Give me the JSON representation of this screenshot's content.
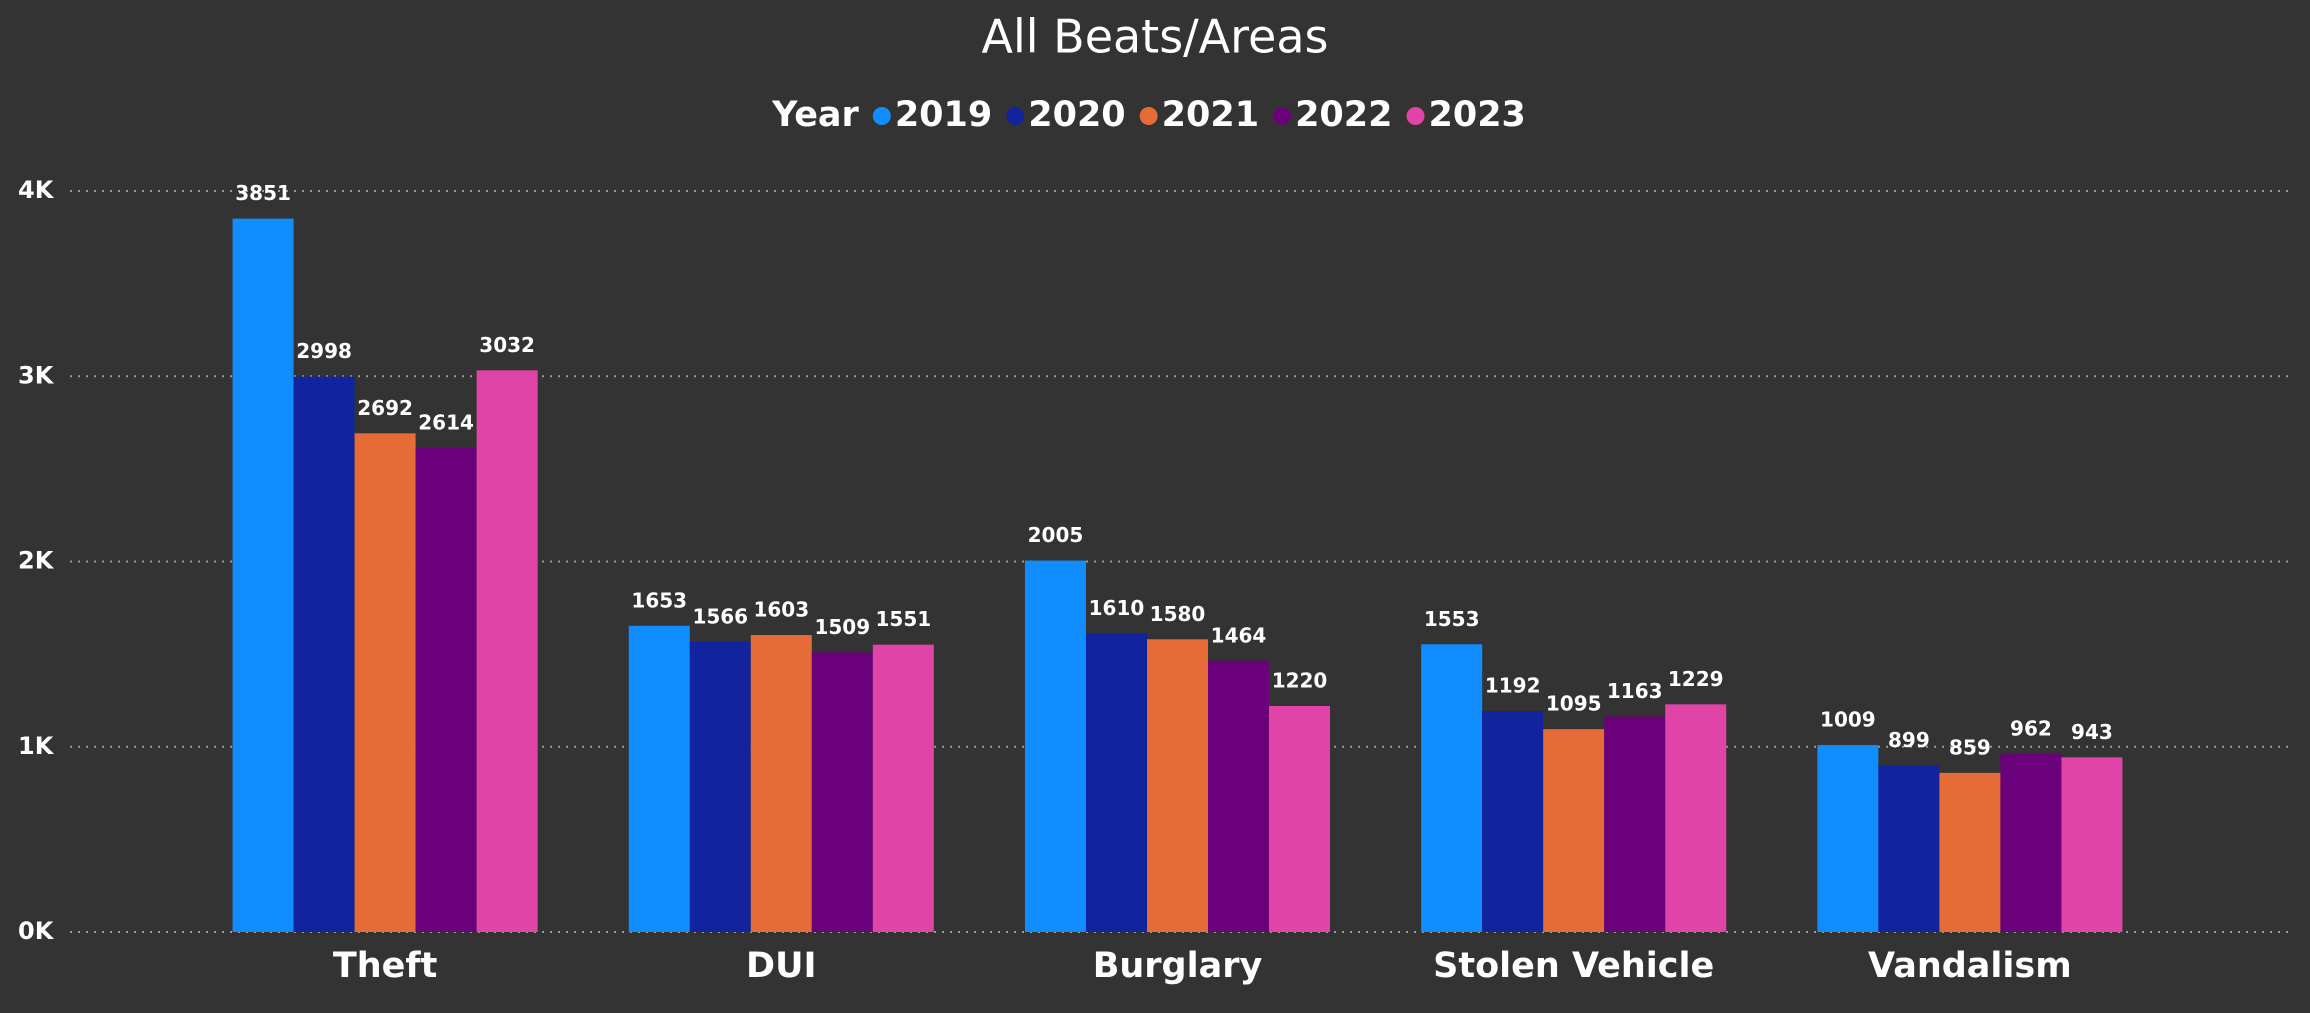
{
  "chart_data": {
    "type": "bar",
    "title": "All Beats/Areas",
    "legend_title": "Year",
    "categories": [
      "Theft",
      "DUI",
      "Burglary",
      "Stolen Vehicle",
      "Vandalism"
    ],
    "series": [
      {
        "name": "2019",
        "color": "#118dff",
        "values": [
          3851,
          1653,
          2005,
          1553,
          1009
        ]
      },
      {
        "name": "2020",
        "color": "#12239e",
        "values": [
          2998,
          1566,
          1610,
          1192,
          899
        ]
      },
      {
        "name": "2021",
        "color": "#e66c37",
        "values": [
          2692,
          1603,
          1580,
          1095,
          859
        ]
      },
      {
        "name": "2022",
        "color": "#6b007b",
        "values": [
          2614,
          1509,
          1464,
          1163,
          962
        ]
      },
      {
        "name": "2023",
        "color": "#e044a7",
        "values": [
          3032,
          1551,
          1220,
          1229,
          943
        ]
      }
    ],
    "ylim": [
      0,
      4000
    ],
    "yticks": [
      {
        "value": 0,
        "label": "0K"
      },
      {
        "value": 1000,
        "label": "1K"
      },
      {
        "value": 2000,
        "label": "2K"
      },
      {
        "value": 3000,
        "label": "3K"
      },
      {
        "value": 4000,
        "label": "4K"
      }
    ],
    "grid": true,
    "legend": "top"
  }
}
